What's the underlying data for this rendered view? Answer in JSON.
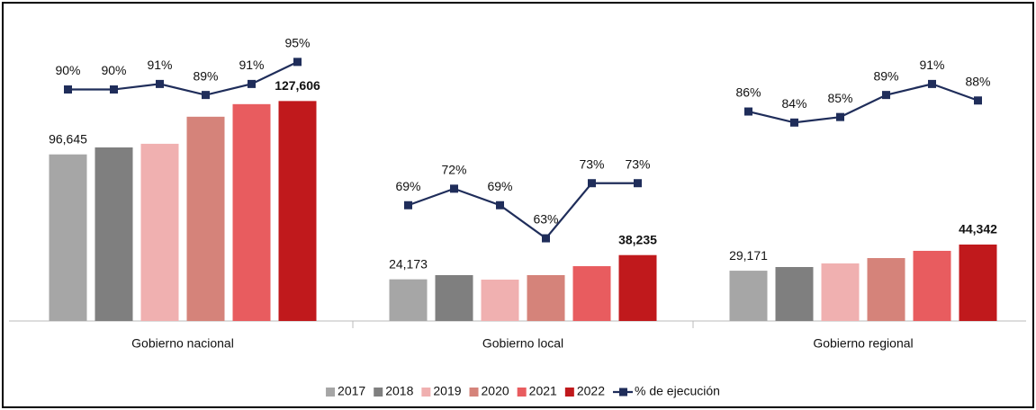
{
  "chart_data": {
    "type": "bar",
    "categories": [
      "Gobierno nacional",
      "Gobierno local",
      "Gobierno regional"
    ],
    "series": [
      {
        "name": "2017",
        "color": "#a6a6a6",
        "values": [
          96645,
          24173,
          29171
        ],
        "value_labels": [
          "96,645",
          "24,173",
          "29,171"
        ]
      },
      {
        "name": "2018",
        "color": "#7f7f7f",
        "values": [
          100700,
          26600,
          31300
        ]
      },
      {
        "name": "2019",
        "color": "#f0b0b0",
        "values": [
          102800,
          24000,
          33400
        ]
      },
      {
        "name": "2020",
        "color": "#d5837a",
        "values": [
          118500,
          26600,
          36500
        ]
      },
      {
        "name": "2021",
        "color": "#e85c5f",
        "values": [
          125800,
          31800,
          40700
        ]
      },
      {
        "name": "2022",
        "color": "#c0191c",
        "values": [
          127606,
          38235,
          44342
        ],
        "value_labels": [
          "127,606",
          "38,235",
          "44,342"
        ]
      },
      {
        "name": "% de ejecución",
        "type": "line",
        "axis": "y2",
        "color": "#1f2d5a",
        "values": [
          [
            90,
            90,
            91,
            89,
            91,
            95
          ],
          [
            69,
            72,
            69,
            63,
            73,
            73
          ],
          [
            86,
            84,
            85,
            89,
            91,
            88
          ]
        ],
        "value_labels": [
          [
            "90%",
            "90%",
            "91%",
            "89%",
            "91%",
            "95%"
          ],
          [
            "69%",
            "72%",
            "69%",
            "63%",
            "73%",
            "73%"
          ],
          [
            "86%",
            "84%",
            "85%",
            "89%",
            "91%",
            "88%"
          ]
        ]
      }
    ],
    "ylim": [
      0,
      181000
    ],
    "y2lim": [
      48,
      104.6
    ],
    "legend": "bottom"
  }
}
